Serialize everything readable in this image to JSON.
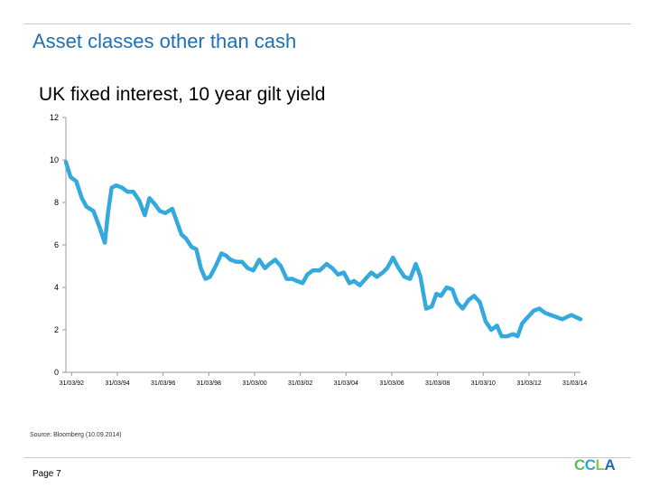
{
  "slide": {
    "title": "Asset classes other than cash",
    "source": "Source: Bloomberg (10.09.2014)",
    "page_label": "Page 7"
  },
  "logo": {
    "letters": [
      "C",
      "C",
      "L",
      "A"
    ],
    "colors": [
      "#5bbd4e",
      "#2ea3d6",
      "#8dc63f",
      "#1f6fb2"
    ]
  },
  "chart_data": {
    "type": "line",
    "title": "UK fixed interest, 10 year gilt yield",
    "xlabel": "",
    "ylabel": "",
    "ylim": [
      0,
      12
    ],
    "yticks": [
      0,
      2,
      4,
      6,
      8,
      10,
      12
    ],
    "xticks": [
      "31/03/92",
      "31/03/94",
      "31/03/96",
      "31/03/98",
      "31/03/00",
      "31/03/02",
      "31/03/04",
      "31/03/06",
      "31/03/08",
      "31/03/10",
      "31/03/12",
      "31/03/14"
    ],
    "xlim": [
      1992.0,
      2014.5
    ],
    "grid": false,
    "line_color": "#33a9dc",
    "x": [
      1992.0,
      1992.2,
      1992.45,
      1992.7,
      1992.9,
      1993.2,
      1993.45,
      1993.7,
      1993.85,
      1994.0,
      1994.2,
      1994.45,
      1994.7,
      1994.95,
      1995.2,
      1995.45,
      1995.65,
      1995.9,
      1996.1,
      1996.35,
      1996.65,
      1996.85,
      1997.05,
      1997.25,
      1997.5,
      1997.7,
      1997.9,
      1998.1,
      1998.3,
      1998.55,
      1998.8,
      1999.0,
      1999.2,
      1999.45,
      1999.7,
      1999.95,
      2000.2,
      2000.45,
      2000.7,
      2000.9,
      2001.15,
      2001.4,
      2001.65,
      2001.9,
      2002.1,
      2002.35,
      2002.55,
      2002.8,
      2003.1,
      2003.4,
      2003.65,
      2003.9,
      2004.15,
      2004.4,
      2004.6,
      2004.85,
      2005.1,
      2005.35,
      2005.6,
      2005.85,
      2006.05,
      2006.3,
      2006.55,
      2006.8,
      2007.05,
      2007.3,
      2007.5,
      2007.75,
      2008.0,
      2008.2,
      2008.4,
      2008.65,
      2008.9,
      2009.1,
      2009.35,
      2009.6,
      2009.85,
      2010.1,
      2010.35,
      2010.6,
      2010.85,
      2011.05,
      2011.3,
      2011.55,
      2011.75,
      2011.95,
      2012.2,
      2012.45,
      2012.7,
      2012.95,
      2013.2,
      2013.45,
      2013.7,
      2013.9,
      2014.1,
      2014.3,
      2014.5
    ],
    "y": [
      9.9,
      9.2,
      9.0,
      8.2,
      7.8,
      7.6,
      6.9,
      6.1,
      7.6,
      8.7,
      8.8,
      8.7,
      8.5,
      8.5,
      8.1,
      7.4,
      8.2,
      7.9,
      7.6,
      7.5,
      7.7,
      7.1,
      6.5,
      6.3,
      5.9,
      5.8,
      4.9,
      4.4,
      4.5,
      5.0,
      5.6,
      5.5,
      5.3,
      5.2,
      5.2,
      4.9,
      4.8,
      5.3,
      4.9,
      5.1,
      5.3,
      5.0,
      4.4,
      4.4,
      4.3,
      4.2,
      4.6,
      4.8,
      4.8,
      5.1,
      4.9,
      4.6,
      4.7,
      4.2,
      4.3,
      4.1,
      4.4,
      4.7,
      4.5,
      4.7,
      4.9,
      5.4,
      4.9,
      4.5,
      4.4,
      5.1,
      4.5,
      3.0,
      3.1,
      3.7,
      3.6,
      4.0,
      3.9,
      3.3,
      3.0,
      3.4,
      3.6,
      3.3,
      2.4,
      2.0,
      2.2,
      1.7,
      1.7,
      1.8,
      1.7,
      2.3,
      2.6,
      2.9,
      3.0,
      2.8,
      2.7,
      2.6,
      2.5,
      2.6,
      2.7,
      2.6,
      2.5
    ]
  }
}
